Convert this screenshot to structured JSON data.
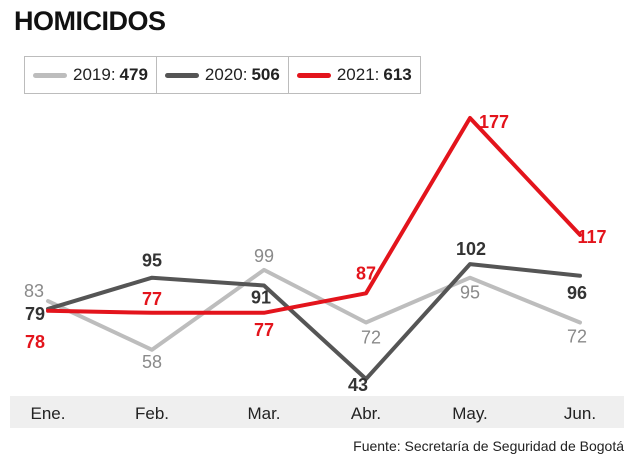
{
  "title": "HOMICIDOS",
  "source": "Fuente: Secretaría de Seguridad de Bogotá",
  "legend": [
    {
      "year": "2019:",
      "total": "479",
      "color": "#bdbdbd"
    },
    {
      "year": "2020:",
      "total": "506",
      "color": "#555555"
    },
    {
      "year": "2021:",
      "total": "613",
      "color": "#e3141c"
    }
  ],
  "chart_data": {
    "type": "line",
    "categories": [
      "Ene.",
      "Feb.",
      "Mar.",
      "Abr.",
      "May.",
      "Jun."
    ],
    "series": [
      {
        "name": "2019",
        "values": [
          83,
          58,
          99,
          72,
          95,
          72
        ],
        "color": "#bdbdbd",
        "label_color": "#8a8a8a",
        "bold": false
      },
      {
        "name": "2020",
        "values": [
          79,
          95,
          91,
          43,
          102,
          96
        ],
        "color": "#555555",
        "label_color": "#333333",
        "bold": true
      },
      {
        "name": "2021",
        "values": [
          78,
          77,
          77,
          87,
          177,
          117
        ],
        "color": "#e3141c",
        "label_color": "#e3141c",
        "bold": true
      }
    ],
    "title": "HOMICIDOS",
    "xlabel": "",
    "ylabel": "",
    "grid": false
  }
}
